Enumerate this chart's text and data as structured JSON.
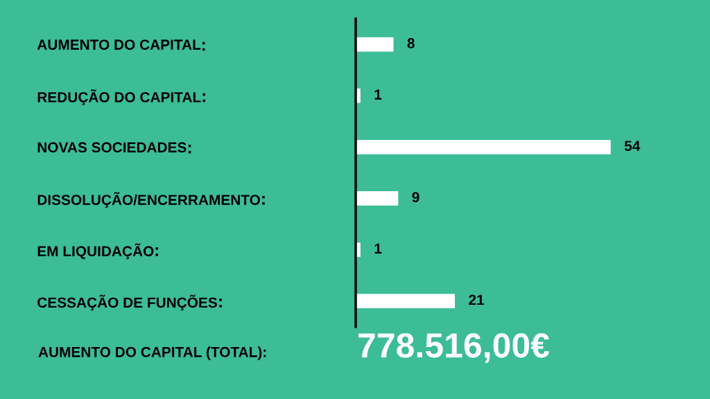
{
  "chart_data": {
    "type": "bar",
    "orientation": "horizontal",
    "categories": [
      "AUMENTO DO CAPITAL",
      "REDUÇÃO DO CAPITAL",
      "NOVAS SOCIEDADES",
      "DISSOLUÇÃO/ENCERRAMENTO",
      "EM LIQUIDAÇÃO",
      "CESSAÇÃO DE FUNÇÕES"
    ],
    "values": [
      8,
      1,
      54,
      9,
      1,
      21
    ],
    "color": "#ffffff",
    "data_labels": true,
    "grid": false,
    "legend": false,
    "annotations": [
      "AUMENTO DO CAPITAL (TOTAL):",
      "778.516,00€"
    ]
  }
}
